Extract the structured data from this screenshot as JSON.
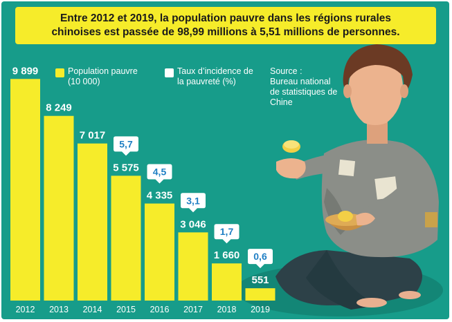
{
  "title": {
    "line1": "Entre 2012 et 2019, la population pauvre dans les régions rurales",
    "line2": "chinoises est passée de 98,99 millions à 5,51 millions de personnes."
  },
  "legend": {
    "population_line1": "Population pauvre",
    "population_line2": "(10 000)",
    "rate_line1": "Taux d’incidence de",
    "rate_line2": "la pauvreté (%)"
  },
  "source": {
    "line1": "Source :",
    "line2": "Bureau national",
    "line3": "de statistiques de",
    "line4": "Chine"
  },
  "colors": {
    "background": "#179c8a",
    "bar": "#f6ec2a",
    "rate_text": "#1f7fc4",
    "skin": "#ecb38e"
  },
  "chart_data": {
    "type": "bar",
    "categories": [
      "2012",
      "2013",
      "2014",
      "2015",
      "2016",
      "2017",
      "2018",
      "2019"
    ],
    "series": [
      {
        "name": "Population pauvre (10 000)",
        "values": [
          9899,
          8249,
          7017,
          5575,
          4335,
          3046,
          1660,
          551
        ],
        "labels": [
          "9 899",
          "8 249",
          "7 017",
          "5 575",
          "4 335",
          "3 046",
          "1 660",
          "551"
        ]
      },
      {
        "name": "Taux d’incidence de la pauvreté (%)",
        "values": [
          null,
          null,
          null,
          5.7,
          4.5,
          3.1,
          1.7,
          0.6
        ],
        "labels": [
          "",
          "",
          "",
          "5,7",
          "4,5",
          "3,1",
          "1,7",
          "0,6"
        ]
      }
    ],
    "ylim": [
      0,
      10000
    ]
  }
}
